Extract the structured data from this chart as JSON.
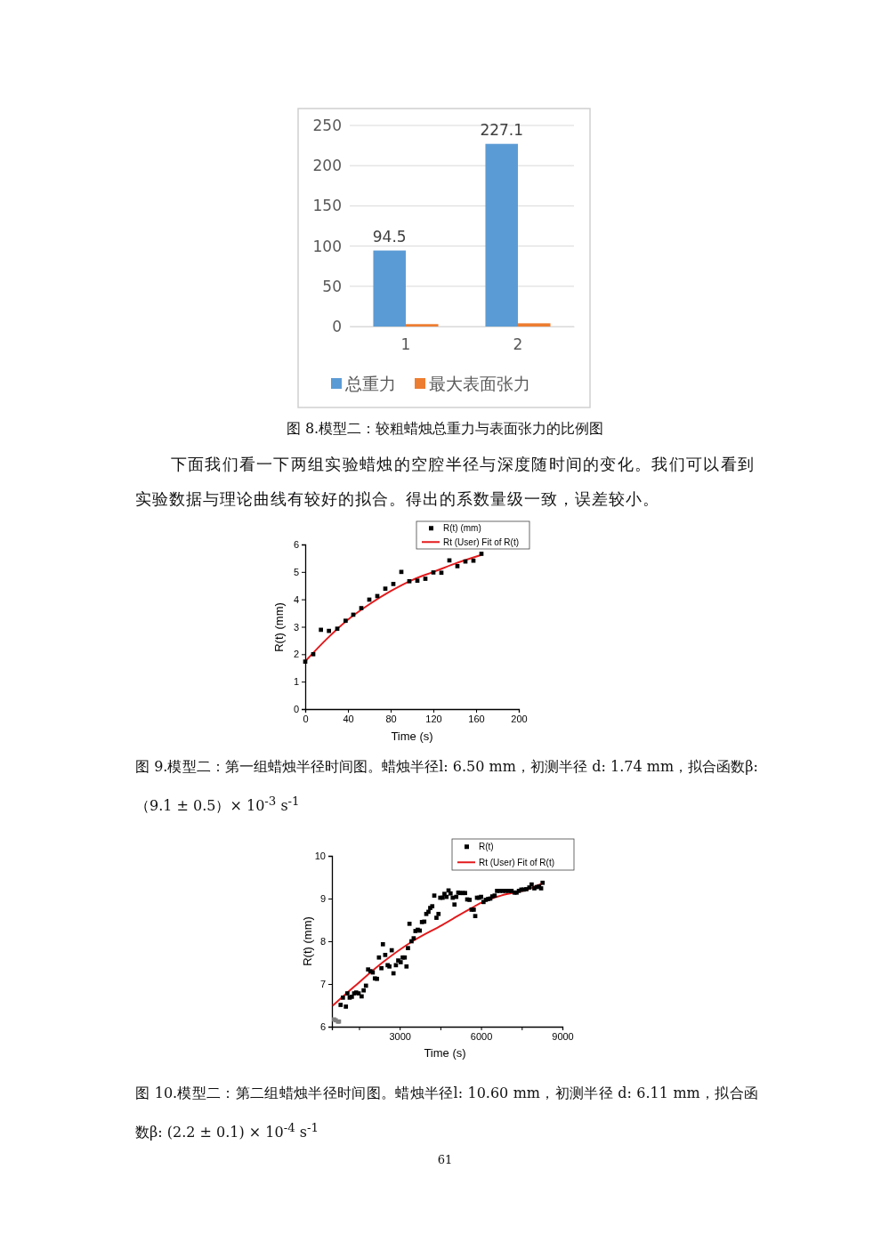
{
  "chart_data": [
    {
      "type": "bar",
      "categories": [
        "1",
        "2"
      ],
      "ylim": [
        0,
        250
      ],
      "yticks": [
        0,
        50,
        100,
        150,
        200,
        250
      ],
      "grid": "y",
      "legend": "bottom",
      "series": [
        {
          "name": "总重力",
          "color": "#5b9bd5",
          "values": [
            94.5,
            227.1
          ],
          "value_labels": [
            "94.5",
            "227.1"
          ]
        },
        {
          "name": "最大表面张力",
          "color": "#ed7d31",
          "values": [
            3,
            4
          ]
        }
      ],
      "annotations": [
        "图 8.模型二：较粗蜡烛总重力与表面张力的比例图",
        "下面我们看一下两组实验蜡烛的空腔半径与深度随时间的变化。我们可以看到实验数据与理论曲线有较好的拟合。得出的系数量级一致，误差较小。"
      ]
    },
    {
      "type": "scatter",
      "xlabel": "Time (s)",
      "ylabel": "R(t) (mm)",
      "xlim": [
        0,
        200
      ],
      "xticks": [
        0,
        40,
        80,
        120,
        160,
        200
      ],
      "ylim": [
        0,
        6
      ],
      "yticks": [
        0,
        1,
        2,
        3,
        4,
        5,
        6
      ],
      "legend": "top right",
      "series": [
        {
          "name": "R(t) (mm)",
          "color": "#000000",
          "marker": "square",
          "x": [
            0,
            7.5,
            14.7,
            22.2,
            30,
            37.8,
            45,
            52.5,
            60,
            67.5,
            75,
            82.5,
            90,
            97.5,
            105,
            112.5,
            120,
            127.5,
            135,
            142.5,
            150,
            157.5,
            165
          ],
          "values": [
            1.73,
            2.0,
            2.89,
            2.85,
            2.93,
            3.22,
            3.44,
            3.68,
            3.99,
            4.12,
            4.39,
            4.56,
            5.0,
            4.66,
            4.68,
            4.75,
            4.98,
            4.97,
            5.42,
            5.21,
            5.38,
            5.41,
            5.66
          ]
        },
        {
          "name": "Rt (User) Fit of R(t)",
          "type": "line",
          "color": "#e31a1c",
          "x": [
            0,
            20,
            40,
            60,
            80,
            100,
            120,
            140,
            165
          ],
          "values": [
            1.74,
            2.55,
            3.26,
            3.82,
            4.3,
            4.7,
            5.0,
            5.3,
            5.62
          ]
        }
      ],
      "annotations": [
        "图 9.模型二：第一组蜡烛半径时间图。蜡烛半径l: 6.50 mm，初测半径 d:  1.74 mm，拟合函数β:（9.1 ± 0.5）× 10$^{-3}$ s$^{-1}$"
      ]
    },
    {
      "type": "scatter",
      "xlabel": "Time (s)",
      "ylabel": "R(t) (mm)",
      "xlim": [
        500,
        9000
      ],
      "xticks": [
        {
          "value": 1500,
          "label": null
        },
        3000,
        {
          "value": 4500,
          "label": null
        },
        6000,
        {
          "value": 7500,
          "label": null
        },
        9000
      ],
      "ylim": [
        6,
        10
      ],
      "yticks": [
        6,
        7,
        8,
        9,
        10
      ],
      "legend": "top right",
      "series": [
        {
          "name": "R(t)",
          "color": "#000000",
          "marker": "square",
          "colors": [
            "#808080",
            "#808080",
            "#808080",
            "#808080",
            "#000000",
            "#000000",
            "#000000",
            "#000000",
            "#000000",
            "#000000",
            "#000000",
            "#000000",
            "#000000",
            "#000000",
            "#000000",
            "#000000",
            "#000000",
            "#000000",
            "#000000",
            "#000000",
            "#000000",
            "#000000",
            "#000000",
            "#000000",
            "#000000",
            "#000000",
            "#000000",
            "#000000",
            "#000000",
            "#000000",
            "#000000",
            "#000000",
            "#000000",
            "#000000",
            "#000000",
            "#000000",
            "#000000",
            "#000000",
            "#000000",
            "#000000",
            "#000000",
            "#000000",
            "#000000",
            "#000000",
            "#000000",
            "#000000",
            "#000000",
            "#000000",
            "#000000",
            "#000000",
            "#000000",
            "#000000",
            "#000000",
            "#000000",
            "#000000",
            "#000000",
            "#000000",
            "#000000",
            "#000000",
            "#000000",
            "#000000",
            "#000000",
            "#000000",
            "#000000",
            "#000000",
            "#000000",
            "#000000",
            "#000000",
            "#000000",
            "#000000",
            "#000000",
            "#000000",
            "#000000",
            "#000000",
            "#000000",
            "#000000",
            "#000000",
            "#000000",
            "#000000",
            "#000000",
            "#000000",
            "#000000",
            "#000000",
            "#000000",
            "#000000",
            "#000000",
            "#000000",
            "#000000",
            "#000000",
            "#000000",
            "#000000",
            "#000000",
            "#000000",
            "#000000",
            "#000000",
            "#000000",
            "#000000"
          ],
          "x": [
            580,
            640,
            720,
            760,
            820,
            905,
            1015,
            1070,
            1155,
            1235,
            1320,
            1395,
            1485,
            1595,
            1670,
            1755,
            1835,
            1920,
            2005,
            2085,
            2160,
            2235,
            2325,
            2380,
            2465,
            2555,
            2620,
            2705,
            2770,
            2860,
            2945,
            3035,
            3110,
            3185,
            3250,
            3305,
            3360,
            3435,
            3515,
            3580,
            3665,
            3740,
            3820,
            3905,
            3980,
            4060,
            4125,
            4200,
            4275,
            4355,
            4430,
            4495,
            4580,
            4650,
            4725,
            4800,
            4875,
            4955,
            5020,
            5085,
            5160,
            5235,
            5325,
            5410,
            5490,
            5575,
            5650,
            5730,
            5785,
            5850,
            5925,
            6000,
            6090,
            6175,
            6260,
            6340,
            6415,
            6500,
            6590,
            6690,
            6800,
            6905,
            7015,
            7125,
            7235,
            7310,
            7395,
            7485,
            7570,
            7670,
            7780,
            7865,
            7965,
            8050,
            8140,
            8215,
            8270
          ],
          "values": [
            6.17,
            6.15,
            6.12,
            6.12,
            6.51,
            6.68,
            6.47,
            6.78,
            6.68,
            6.7,
            6.78,
            6.8,
            6.78,
            6.71,
            6.85,
            6.96,
            7.34,
            7.3,
            7.27,
            7.13,
            7.12,
            7.62,
            7.37,
            7.93,
            7.68,
            7.44,
            7.41,
            7.79,
            7.25,
            7.44,
            7.55,
            7.51,
            7.62,
            7.62,
            7.41,
            7.84,
            8.41,
            8.0,
            8.07,
            8.24,
            8.27,
            8.25,
            8.45,
            8.46,
            8.64,
            8.69,
            8.78,
            8.82,
            9.07,
            8.55,
            8.64,
            9.02,
            9.02,
            9.11,
            9.04,
            9.19,
            9.12,
            9.02,
            8.86,
            9.04,
            9.14,
            9.13,
            9.13,
            9.13,
            8.98,
            8.97,
            8.74,
            8.74,
            8.59,
            9.02,
            9.02,
            9.04,
            8.92,
            8.97,
            8.99,
            9.0,
            9.05,
            9.07,
            9.18,
            9.18,
            9.18,
            9.18,
            9.18,
            9.18,
            9.14,
            9.14,
            9.18,
            9.21,
            9.21,
            9.22,
            9.26,
            9.33,
            9.24,
            9.27,
            9.28,
            9.24,
            9.37
          ]
        },
        {
          "name": "Rt (User) Fit of R(t)",
          "type": "line",
          "color": "#e31a1c",
          "x": [
            525,
            1290,
            2380,
            3470,
            4560,
            5650,
            6090,
            6740,
            7830,
            8270
          ],
          "values": [
            6.49,
            6.92,
            7.51,
            8.0,
            8.38,
            8.78,
            8.93,
            9.07,
            9.24,
            9.36
          ]
        }
      ],
      "annotations": [
        "图 10.模型二：第二组蜡烛半径时间图。蜡烛半径l: 10.60 mm，初测半径 d:  6.11 mm，拟合函数β: (2.2 ± 0.1) × 10$^{-4}$ s$^{-1}$",
        "61"
      ]
    }
  ]
}
